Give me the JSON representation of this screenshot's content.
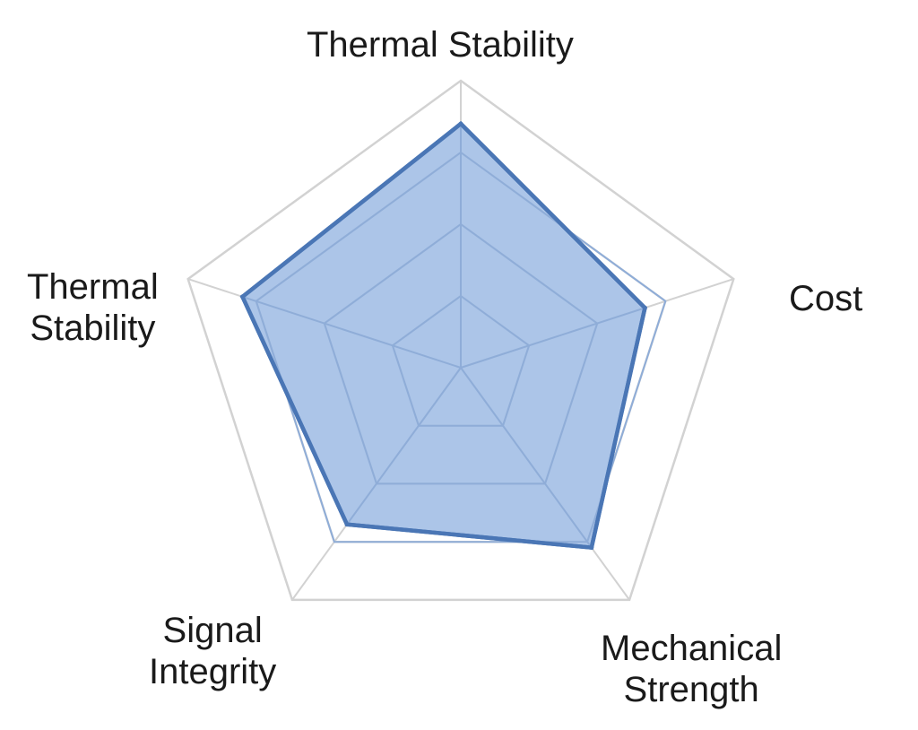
{
  "chart_data": {
    "type": "radar",
    "axes": [
      {
        "label_lines": [
          "Thermal Stability"
        ]
      },
      {
        "label_lines": [
          "Cost"
        ]
      },
      {
        "label_lines": [
          "Mechanical",
          "Strength"
        ]
      },
      {
        "label_lines": [
          "Signal",
          "Integrity"
        ]
      },
      {
        "label_lines": [
          "Thermal",
          "Stability"
        ]
      }
    ],
    "range": [
      0,
      4
    ],
    "rings": 4,
    "grid": true,
    "series": [
      {
        "values": [
          3.4,
          2.7,
          3.1,
          2.7,
          3.2
        ],
        "stroke_color": "#4a76b5",
        "fill_color": "#a3bfe6"
      }
    ]
  }
}
